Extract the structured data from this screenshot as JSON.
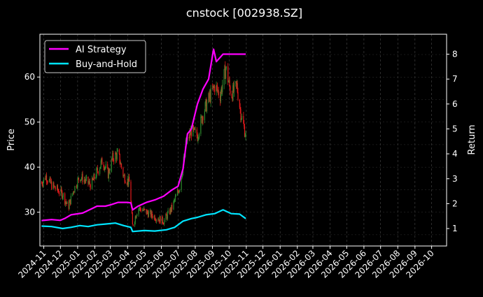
{
  "chart_data": {
    "type": "line",
    "title": "cnstock [002938.SZ]",
    "ylabel": "Price",
    "ylabel_right": "Return",
    "ylim": [
      22.5,
      69.5
    ],
    "ylim_right": [
      0.3,
      8.8
    ],
    "xlim": [
      "2024-10-25",
      "2026-10-28"
    ],
    "yticks": [
      30,
      40,
      50,
      60
    ],
    "yticks_right": [
      1,
      2,
      3,
      4,
      5,
      6,
      7,
      8
    ],
    "grid": true,
    "legend_position": "top-left",
    "x_ticks": [
      "2024-11",
      "2024-12",
      "2025-01",
      "2025-02",
      "2025-03",
      "2025-04",
      "2025-05",
      "2025-06",
      "2025-07",
      "2025-08",
      "2025-09",
      "2025-10",
      "2025-11",
      "2025-12",
      "2026-01",
      "2026-02",
      "2026-03",
      "2026-04",
      "2026-05",
      "2026-06",
      "2026-07",
      "2026-08",
      "2026-09",
      "2026-10"
    ],
    "candles": {
      "up_color": "#2e8b2e",
      "down_color": "#e31a1c",
      "approx_close": [
        [
          "2024-10-28",
          36.5
        ],
        [
          "2024-11-05",
          38.0
        ],
        [
          "2024-11-15",
          36.0
        ],
        [
          "2024-11-25",
          35.0
        ],
        [
          "2024-12-05",
          34.0
        ],
        [
          "2024-12-15",
          31.0
        ],
        [
          "2024-12-25",
          35.0
        ],
        [
          "2025-01-05",
          38.0
        ],
        [
          "2025-01-15",
          37.0
        ],
        [
          "2025-01-25",
          36.0
        ],
        [
          "2025-02-05",
          39.0
        ],
        [
          "2025-02-15",
          41.5
        ],
        [
          "2025-02-25",
          38.5
        ],
        [
          "2025-03-05",
          42.0
        ],
        [
          "2025-03-15",
          43.0
        ],
        [
          "2025-03-25",
          38.0
        ],
        [
          "2025-04-05",
          36.5
        ],
        [
          "2025-04-10",
          27.0
        ],
        [
          "2025-04-20",
          31.0
        ],
        [
          "2025-05-05",
          30.0
        ],
        [
          "2025-05-20",
          29.0
        ],
        [
          "2025-06-05",
          28.0
        ],
        [
          "2025-06-20",
          31.0
        ],
        [
          "2025-07-05",
          36.0
        ],
        [
          "2025-07-15",
          45.0
        ],
        [
          "2025-07-25",
          48.0
        ],
        [
          "2025-08-05",
          47.0
        ],
        [
          "2025-08-15",
          52.0
        ],
        [
          "2025-08-25",
          55.0
        ],
        [
          "2025-09-05",
          58.0
        ],
        [
          "2025-09-15",
          56.0
        ],
        [
          "2025-09-25",
          62.0
        ],
        [
          "2025-10-05",
          56.0
        ],
        [
          "2025-10-15",
          58.0
        ],
        [
          "2025-10-22",
          52.0
        ],
        [
          "2025-10-31",
          47.0
        ]
      ]
    },
    "series": [
      {
        "name": "AI Strategy",
        "color": "#ff00ff",
        "axis": "right",
        "points": [
          [
            "2024-10-28",
            1.32
          ],
          [
            "2024-11-15",
            1.36
          ],
          [
            "2024-12-01",
            1.33
          ],
          [
            "2024-12-10",
            1.42
          ],
          [
            "2024-12-20",
            1.55
          ],
          [
            "2025-01-10",
            1.62
          ],
          [
            "2025-01-25",
            1.78
          ],
          [
            "2025-02-05",
            1.9
          ],
          [
            "2025-02-20",
            1.9
          ],
          [
            "2025-03-01",
            1.95
          ],
          [
            "2025-03-15",
            2.05
          ],
          [
            "2025-04-01",
            2.05
          ],
          [
            "2025-04-07",
            2.03
          ],
          [
            "2025-04-10",
            1.75
          ],
          [
            "2025-04-20",
            1.9
          ],
          [
            "2025-05-05",
            2.05
          ],
          [
            "2025-05-20",
            2.15
          ],
          [
            "2025-06-05",
            2.3
          ],
          [
            "2025-06-20",
            2.55
          ],
          [
            "2025-07-01",
            2.7
          ],
          [
            "2025-07-10",
            3.4
          ],
          [
            "2025-07-18",
            4.8
          ],
          [
            "2025-07-25",
            5.0
          ],
          [
            "2025-08-05",
            6.0
          ],
          [
            "2025-08-15",
            6.6
          ],
          [
            "2025-08-25",
            7.0
          ],
          [
            "2025-09-03",
            8.2
          ],
          [
            "2025-09-08",
            7.7
          ],
          [
            "2025-09-20",
            8.0
          ],
          [
            "2025-10-31",
            8.0
          ]
        ]
      },
      {
        "name": "Buy-and-Hold",
        "color": "#00e5ff",
        "axis": "right",
        "points": [
          [
            "2024-10-28",
            1.1
          ],
          [
            "2024-11-15",
            1.08
          ],
          [
            "2024-12-05",
            1.0
          ],
          [
            "2024-12-20",
            1.05
          ],
          [
            "2025-01-05",
            1.12
          ],
          [
            "2025-01-20",
            1.08
          ],
          [
            "2025-02-05",
            1.15
          ],
          [
            "2025-02-20",
            1.18
          ],
          [
            "2025-03-10",
            1.22
          ],
          [
            "2025-03-25",
            1.12
          ],
          [
            "2025-04-07",
            1.05
          ],
          [
            "2025-04-10",
            0.88
          ],
          [
            "2025-05-01",
            0.92
          ],
          [
            "2025-05-20",
            0.9
          ],
          [
            "2025-06-10",
            0.95
          ],
          [
            "2025-06-25",
            1.05
          ],
          [
            "2025-07-10",
            1.3
          ],
          [
            "2025-07-25",
            1.4
          ],
          [
            "2025-08-05",
            1.45
          ],
          [
            "2025-08-20",
            1.55
          ],
          [
            "2025-09-05",
            1.6
          ],
          [
            "2025-09-20",
            1.75
          ],
          [
            "2025-10-05",
            1.6
          ],
          [
            "2025-10-20",
            1.58
          ],
          [
            "2025-10-31",
            1.4
          ]
        ]
      }
    ]
  }
}
